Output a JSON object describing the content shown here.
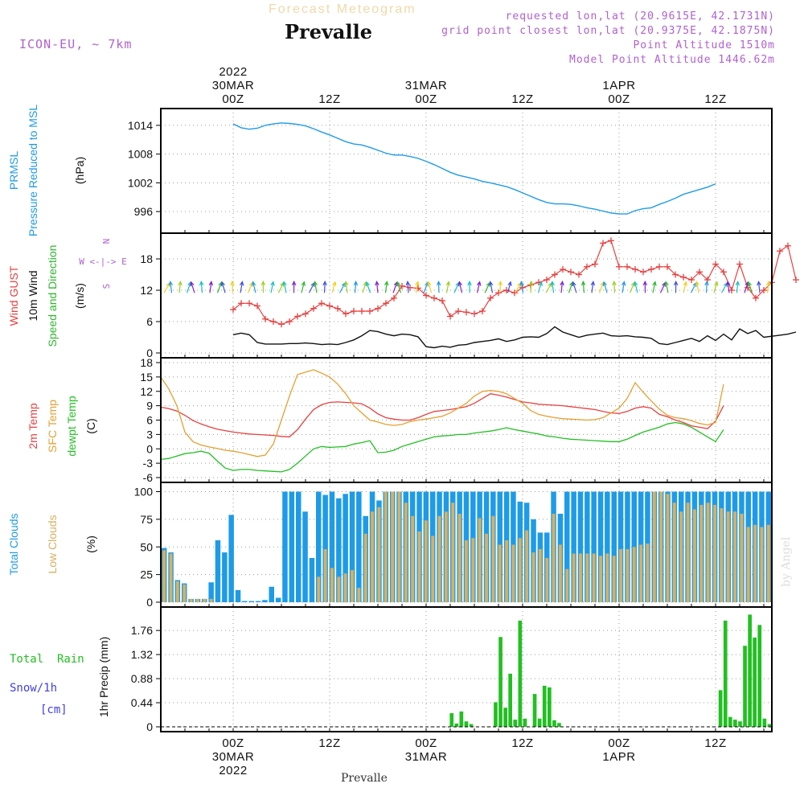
{
  "header": {
    "subtitle": "Forecast Meteogram",
    "title": "Prevalle",
    "model": "ICON-EU, ~ 7km",
    "requested": "requested lon,lat (20.9615E, 42.1731N)",
    "grid_point": "grid point closest lon,lat (20.9375E, 42.1875N)",
    "point_altitude": "Point Altitude 1510m",
    "model_altitude": "Model Point Altitude 1446.62m",
    "footer": "Prevalle",
    "watermark": "by Angel"
  },
  "colors": {
    "pressure": "#1e9be8",
    "gust": "#e84040",
    "wind": "#111111",
    "dir": "#2db82d",
    "temp2m": "#e84040",
    "sfc": "#e6a030",
    "dewpt": "#22c022",
    "total_clouds": "#1e9be8",
    "low_clouds": "#d8b060",
    "rain": "#22c022",
    "snow": "#4040e0",
    "meta": "#b060d0"
  },
  "time_axis": {
    "top_labels": [
      {
        "t": 9,
        "lines": [
          "2022",
          "30MAR",
          "00Z"
        ]
      },
      {
        "t": 21,
        "lines": [
          "12Z"
        ]
      },
      {
        "t": 33,
        "lines": [
          "31MAR",
          "00Z"
        ]
      },
      {
        "t": 45,
        "lines": [
          "12Z"
        ]
      },
      {
        "t": 57,
        "lines": [
          "1APR",
          "00Z"
        ]
      },
      {
        "t": 69,
        "lines": [
          "12Z"
        ]
      }
    ],
    "bottom_labels": [
      {
        "t": 9,
        "lines": [
          "00Z",
          "30MAR",
          "2022"
        ]
      },
      {
        "t": 21,
        "lines": [
          "12Z"
        ]
      },
      {
        "t": 33,
        "lines": [
          "00Z",
          "31MAR"
        ]
      },
      {
        "t": 45,
        "lines": [
          "12Z"
        ]
      },
      {
        "t": 57,
        "lines": [
          "00Z",
          "1APR"
        ]
      },
      {
        "t": 69,
        "lines": [
          "12Z"
        ]
      }
    ]
  },
  "chart_data": [
    {
      "type": "line",
      "panel": "pressure",
      "ylabels": [
        "PRMSL",
        "Pressure Reduced to MSL"
      ],
      "unit": "(hPa)",
      "yticks": [
        996,
        1002,
        1008,
        1014
      ],
      "ylim": [
        992.5,
        1016.5
      ],
      "x_start": 9,
      "x_step": 1,
      "series": [
        {
          "name": "PRMSL",
          "values": [
            1014.3,
            1013.5,
            1013.2,
            1013.4,
            1014.0,
            1014.3,
            1014.5,
            1014.4,
            1014.2,
            1013.9,
            1013.3,
            1012.6,
            1012.0,
            1011.3,
            1010.6,
            1010.1,
            1009.9,
            1009.4,
            1008.8,
            1008.2,
            1007.8,
            1007.8,
            1007.5,
            1007.1,
            1006.5,
            1005.8,
            1005.0,
            1004.2,
            1003.6,
            1003.2,
            1002.8,
            1002.3,
            1002.0,
            1001.6,
            1001.2,
            1000.6,
            999.9,
            999.2,
            998.5,
            997.9,
            997.6,
            997.6,
            997.5,
            997.2,
            996.8,
            996.5,
            996.1,
            995.7,
            995.5,
            995.5,
            996.2,
            996.6,
            996.8,
            997.5,
            998.1,
            998.8,
            999.6,
            1000.1,
            1000.6,
            1001.1,
            1001.8
          ]
        }
      ]
    },
    {
      "type": "line",
      "panel": "wind",
      "ylabels": [
        "Wind GUST",
        "10m Wind",
        "Speed and Direction"
      ],
      "unit": "(m/s)",
      "compass": [
        "N",
        "W <-|-> E",
        "S"
      ],
      "yticks": [
        0,
        6,
        12,
        18
      ],
      "ylim": [
        0,
        22
      ],
      "x_start": 9,
      "x_step": 1,
      "series": [
        {
          "name": "Wind GUST",
          "values": [
            8.3,
            9.5,
            9.5,
            9.0,
            6.5,
            6.0,
            5.5,
            6.0,
            7.0,
            7.5,
            8.5,
            9.5,
            9.0,
            8.5,
            7.5,
            8.0,
            8.0,
            8.0,
            8.5,
            9.5,
            10.5,
            12.8,
            12.5,
            12.4,
            11.0,
            10.5,
            10.0,
            7.0,
            8.0,
            7.8,
            7.5,
            8.0,
            10.5,
            11.5,
            12.0,
            11.5,
            12.5,
            13.0,
            13.5,
            14.0,
            15.0,
            16.0,
            15.5,
            15.0,
            16.5,
            17.0,
            21.0,
            21.5,
            16.5,
            16.5,
            16.0,
            15.5,
            16.0,
            16.5,
            16.5,
            15.0,
            14.5,
            14.0,
            15.5,
            14.0,
            17.0,
            15.5,
            12.0,
            17.0,
            12.5,
            10.5,
            12.0,
            13.5,
            19.5,
            20.5,
            14.0
          ]
        },
        {
          "name": "10m Wind",
          "values": [
            3.5,
            3.8,
            3.5,
            2.0,
            1.7,
            1.7,
            1.7,
            1.8,
            1.8,
            1.9,
            1.8,
            1.6,
            1.7,
            1.6,
            2.0,
            2.5,
            3.3,
            4.3,
            4.1,
            3.6,
            3.3,
            3.6,
            3.5,
            3.1,
            1.2,
            1.0,
            1.3,
            1.1,
            1.5,
            1.6,
            2.0,
            2.2,
            2.4,
            2.7,
            2.2,
            2.5,
            3.0,
            3.1,
            3.0,
            3.7,
            5.0,
            4.0,
            3.5,
            3.0,
            3.4,
            3.6,
            3.8,
            3.3,
            3.2,
            3.3,
            3.1,
            3.0,
            2.8,
            1.8,
            1.6,
            2.0,
            2.4,
            2.8,
            2.2,
            3.3,
            2.4,
            3.6,
            2.5,
            4.6,
            3.7,
            4.3,
            3.0,
            3.2,
            3.4,
            3.6,
            4.0
          ]
        }
      ]
    },
    {
      "type": "line",
      "panel": "temperature",
      "ylabels": [
        "2m Temp",
        "SFC Temp",
        "dewpt Temp"
      ],
      "unit": "(C)",
      "yticks": [
        -6,
        -3,
        0,
        3,
        6,
        9,
        12,
        15,
        18
      ],
      "ylim": [
        -6,
        18
      ],
      "x_start": 0,
      "x_step": 1,
      "series": [
        {
          "name": "2m Temp",
          "values": [
            8.7,
            8.4,
            7.9,
            7.0,
            5.9,
            5.2,
            4.6,
            4.1,
            3.8,
            3.5,
            3.3,
            3.1,
            3.0,
            2.9,
            2.8,
            2.6,
            2.5,
            4.0,
            6.2,
            8.2,
            9.2,
            9.7,
            9.8,
            9.7,
            9.6,
            9.4,
            8.5,
            7.3,
            6.5,
            6.2,
            6.0,
            6.0,
            6.5,
            7.2,
            7.8,
            8.0,
            8.2,
            8.5,
            8.8,
            9.5,
            10.5,
            11.5,
            11.2,
            10.8,
            10.3,
            9.8,
            9.6,
            9.3,
            9.2,
            9.1,
            9.0,
            8.8,
            8.6,
            8.4,
            8.2,
            7.8,
            7.5,
            7.4,
            7.8,
            8.5,
            8.8,
            8.5,
            7.2,
            6.7,
            6.0,
            5.5,
            4.8,
            4.5,
            4.2,
            5.8,
            9.0
          ]
        },
        {
          "name": "SFC Temp",
          "values": [
            15.0,
            12.5,
            9.0,
            3.5,
            1.5,
            0.8,
            0.4,
            0.1,
            -0.3,
            -0.5,
            -0.8,
            -1.2,
            -1.6,
            -1.3,
            1.0,
            6.0,
            11.0,
            15.5,
            16.0,
            16.5,
            15.8,
            15.0,
            13.5,
            11.5,
            9.0,
            7.5,
            6.0,
            5.6,
            5.1,
            4.9,
            5.1,
            5.7,
            6.0,
            6.2,
            6.5,
            6.8,
            7.5,
            8.5,
            9.5,
            11.0,
            12.0,
            12.2,
            12.0,
            11.5,
            10.5,
            9.5,
            8.0,
            7.2,
            6.8,
            6.5,
            6.3,
            6.2,
            6.1,
            6.0,
            6.1,
            6.5,
            7.5,
            8.5,
            10.5,
            13.8,
            11.8,
            10.0,
            8.3,
            7.0,
            6.5,
            6.3,
            5.9,
            5.3,
            5.0,
            5.5,
            13.5
          ]
        },
        {
          "name": "dewpt Temp",
          "values": [
            -2.2,
            -2.0,
            -1.5,
            -1.0,
            -0.8,
            -0.5,
            -0.9,
            -2.5,
            -4.0,
            -4.5,
            -4.3,
            -4.3,
            -4.5,
            -4.6,
            -4.7,
            -4.8,
            -4.3,
            -3.0,
            -1.5,
            0.0,
            0.5,
            0.3,
            0.4,
            0.5,
            1.0,
            1.3,
            1.7,
            -0.8,
            -0.7,
            -0.3,
            0.5,
            1.0,
            1.5,
            2.0,
            2.5,
            2.7,
            2.8,
            3.0,
            3.0,
            3.3,
            3.5,
            3.7,
            4.0,
            4.4,
            4.0,
            3.7,
            3.4,
            3.1,
            2.7,
            2.5,
            2.2,
            2.0,
            1.9,
            1.8,
            1.7,
            1.6,
            1.5,
            1.5,
            2.0,
            2.8,
            3.5,
            4.0,
            4.5,
            5.2,
            5.5,
            5.2,
            4.5,
            3.5,
            2.5,
            1.5,
            4.0
          ]
        }
      ]
    },
    {
      "type": "bar",
      "panel": "clouds",
      "ylabels": [
        "Total Clouds",
        "Low Clouds"
      ],
      "unit": "(%)",
      "yticks": [
        0,
        25,
        50,
        75,
        100
      ],
      "ylim": [
        0,
        104
      ],
      "x_start": 0,
      "x_step": 1,
      "series": [
        {
          "name": "Total Clouds",
          "values": [
            49,
            45,
            20,
            17,
            3,
            3,
            3,
            18,
            56,
            45,
            79,
            11,
            1,
            1,
            1,
            2,
            14,
            4,
            100,
            100,
            100,
            82,
            40,
            100,
            97,
            100,
            94,
            98,
            100,
            100,
            78,
            100,
            92,
            100,
            100,
            100,
            100,
            100,
            100,
            100,
            100,
            100,
            100,
            100,
            100,
            100,
            100,
            100,
            100,
            100,
            100,
            100,
            100,
            91,
            90,
            75,
            63,
            63,
            100,
            80,
            100,
            100,
            100,
            100,
            100,
            100,
            100,
            100,
            100,
            100,
            100,
            100,
            100,
            100,
            100,
            100,
            100,
            100,
            100,
            100,
            100,
            100,
            100,
            100,
            100,
            100,
            100,
            100,
            100,
            100,
            100
          ]
        },
        {
          "name": "Low Clouds",
          "values": [
            47,
            44,
            19,
            16,
            3,
            3,
            3,
            3,
            0,
            0,
            0,
            0,
            0,
            0,
            0,
            0,
            0,
            0,
            0,
            0,
            0,
            0,
            0,
            23,
            48,
            31,
            23,
            26,
            29,
            13,
            62,
            82,
            86,
            100,
            100,
            100,
            90,
            78,
            64,
            74,
            60,
            78,
            82,
            90,
            80,
            56,
            58,
            76,
            62,
            78,
            52,
            56,
            52,
            58,
            65,
            45,
            48,
            40,
            80,
            52,
            30,
            44,
            44,
            44,
            44,
            42,
            44,
            42,
            48,
            48,
            50,
            52,
            53,
            100,
            100,
            98,
            90,
            82,
            90,
            84,
            88,
            90,
            88,
            85,
            82,
            82,
            80,
            68,
            70,
            68,
            70
          ]
        }
      ]
    },
    {
      "type": "bar",
      "panel": "precip",
      "ylabels": [
        "Total  Rain",
        "Snow/1h",
        "[cm]"
      ],
      "unit": "1hr Precip (mm)",
      "yticks": [
        0,
        0.44,
        0.88,
        1.32,
        1.76
      ],
      "ylim": [
        0,
        2.1
      ],
      "x_start": 0,
      "x_step": 1,
      "series": [
        {
          "name": "Total Rain",
          "values": [
            0,
            0,
            0,
            0,
            0,
            0,
            0,
            0,
            0,
            0,
            0,
            0,
            0,
            0,
            0,
            0,
            0,
            0,
            0,
            0,
            0,
            0,
            0,
            0,
            0,
            0,
            0,
            0,
            0,
            0,
            0,
            0,
            0,
            0,
            0,
            0,
            0,
            0,
            0,
            0,
            0,
            0,
            0,
            0,
            0,
            0,
            0,
            0,
            0,
            0,
            0,
            0,
            0,
            0,
            0,
            0,
            0,
            0,
            0,
            0.25,
            0.06,
            0.28,
            0.1,
            0.05,
            0,
            0,
            0,
            0,
            0.45,
            1.64,
            0.35,
            0.97,
            0.13,
            1.94,
            0.15,
            0,
            0.6,
            0.15,
            0.75,
            0.72,
            0.12,
            0.07,
            0,
            0,
            0,
            0,
            0,
            0,
            0,
            0,
            0,
            0,
            0,
            0,
            0,
            0,
            0,
            0,
            0,
            0,
            0,
            0,
            0,
            0,
            0,
            0,
            0,
            0,
            0,
            0,
            0,
            0,
            0,
            0,
            0.67,
            1.94,
            0.18,
            0.13,
            0.1,
            1.48,
            2.05,
            1.63,
            1.86,
            0.15,
            0.05
          ]
        }
      ]
    }
  ]
}
